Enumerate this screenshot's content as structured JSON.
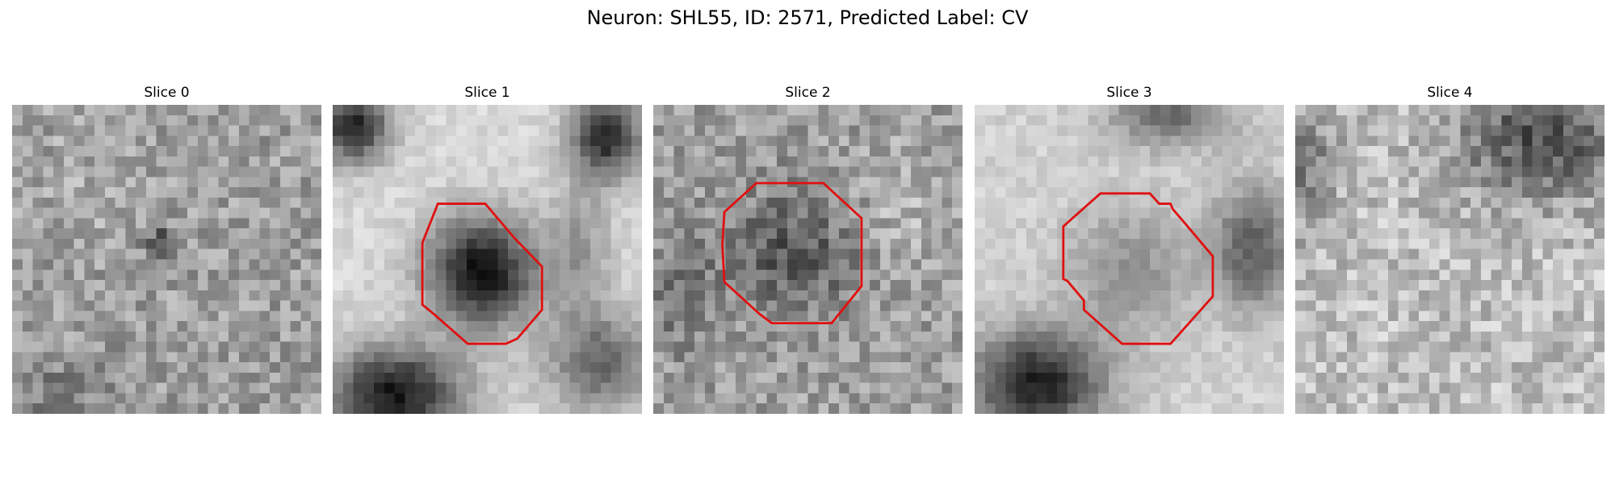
{
  "figure": {
    "title": "Neuron: SHL55, ID: 2571, Predicted Label: CV"
  },
  "panels": [
    {
      "title": "Slice 0",
      "has_outline": false
    },
    {
      "title": "Slice 1",
      "has_outline": true
    },
    {
      "title": "Slice 2",
      "has_outline": true
    },
    {
      "title": "Slice 3",
      "has_outline": true
    },
    {
      "title": "Slice 4",
      "has_outline": false
    }
  ],
  "colors": {
    "outline": "#e01010",
    "background": "#ffffff"
  }
}
